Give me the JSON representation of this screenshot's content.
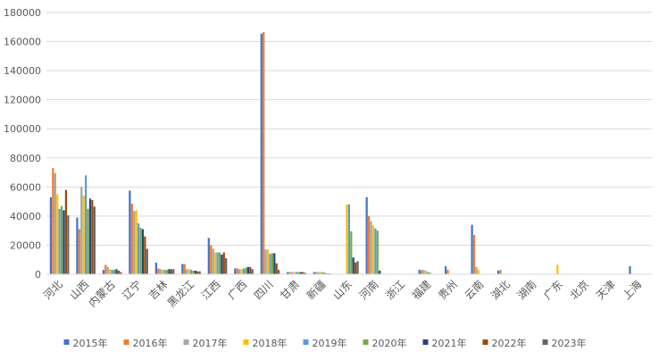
{
  "chart_data": {
    "type": "bar",
    "categories": [
      "河北",
      "山西",
      "内蒙古",
      "辽宁",
      "吉林",
      "黑龙江",
      "江西",
      "广西",
      "四川",
      "甘肃",
      "新疆",
      "山东",
      "河南",
      "浙江",
      "福建",
      "贵州",
      "云南",
      "湖北",
      "湖南",
      "广东",
      "北京",
      "天津",
      "上海"
    ],
    "series": [
      {
        "name": "2015年",
        "color": "#4472C4",
        "values": [
          53000,
          39000,
          3000,
          57500,
          8000,
          7000,
          25000,
          4000,
          165500,
          1500,
          1500,
          0,
          53000,
          200,
          3000,
          5500,
          34000,
          2500,
          0,
          0,
          0,
          0,
          5500
        ]
      },
      {
        "name": "2016年",
        "color": "#ED7D31",
        "values": [
          73000,
          31000,
          6500,
          48500,
          4000,
          7000,
          20000,
          4000,
          166500,
          1500,
          1500,
          0,
          40000,
          200,
          3000,
          3000,
          27000,
          3000,
          0,
          0,
          0,
          0,
          0
        ]
      },
      {
        "name": "2017年",
        "color": "#A5A5A5",
        "values": [
          69500,
          60000,
          5000,
          43500,
          3500,
          3500,
          17500,
          3500,
          17000,
          1500,
          1500,
          0,
          36500,
          200,
          3000,
          0,
          5000,
          0,
          0,
          0,
          0,
          0,
          0
        ]
      },
      {
        "name": "2018年",
        "color": "#FFC000",
        "values": [
          55000,
          54000,
          3500,
          44000,
          3000,
          3500,
          15000,
          3500,
          17000,
          1500,
          1500,
          48000,
          33500,
          0,
          2500,
          0,
          3000,
          0,
          0,
          6500,
          0,
          0,
          0
        ]
      },
      {
        "name": "2019年",
        "color": "#5B9BD5",
        "values": [
          45000,
          68000,
          3000,
          35000,
          3000,
          3000,
          15000,
          4000,
          14000,
          1500,
          1500,
          48000,
          31500,
          0,
          1500,
          0,
          0,
          0,
          0,
          0,
          0,
          0,
          0
        ]
      },
      {
        "name": "2020年",
        "color": "#70AD47",
        "values": [
          47000,
          45000,
          3000,
          32000,
          3000,
          2500,
          15000,
          4500,
          14500,
          1500,
          1000,
          29500,
          30000,
          0,
          1000,
          0,
          0,
          0,
          0,
          0,
          0,
          0,
          0
        ]
      },
      {
        "name": "2021年",
        "color": "#264478",
        "values": [
          44000,
          52000,
          3500,
          31000,
          3500,
          2500,
          13500,
          5000,
          14500,
          1500,
          500,
          11500,
          2500,
          0,
          0,
          0,
          0,
          0,
          0,
          0,
          0,
          0,
          0
        ]
      },
      {
        "name": "2022年",
        "color": "#9E480E",
        "values": [
          58000,
          51000,
          2500,
          26000,
          3500,
          2000,
          15000,
          5000,
          7500,
          1500,
          500,
          8000,
          0,
          0,
          0,
          0,
          0,
          0,
          0,
          0,
          0,
          0,
          0
        ]
      },
      {
        "name": "2023年",
        "color": "#636363",
        "values": [
          40500,
          46500,
          1500,
          17500,
          3500,
          2000,
          11000,
          3500,
          3000,
          1000,
          0,
          9000,
          0,
          0,
          0,
          0,
          0,
          0,
          0,
          0,
          0,
          0,
          0
        ]
      }
    ],
    "ylim": [
      0,
      180000
    ],
    "yticks": [
      "0",
      "20000",
      "40000",
      "60000",
      "80000",
      "100000",
      "120000",
      "140000",
      "160000",
      "180000"
    ],
    "ytick_values": [
      0,
      20000,
      40000,
      60000,
      80000,
      100000,
      120000,
      140000,
      160000,
      180000
    ],
    "grid": true,
    "legend_position": "bottom"
  }
}
